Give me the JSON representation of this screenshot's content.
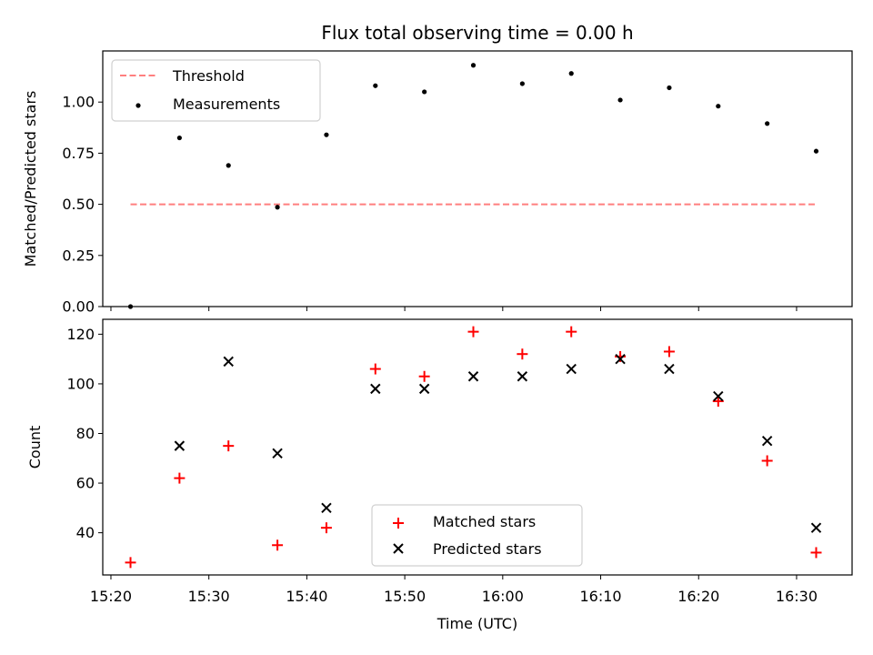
{
  "chart_data": [
    {
      "type": "scatter",
      "title": "Flux total observing time = 0.00 h",
      "xlabel": "",
      "ylabel": "Matched/Predicted stars",
      "ylim": [
        0.0,
        1.25
      ],
      "yticks": [
        "0.00",
        "0.25",
        "0.50",
        "0.75",
        "1.00"
      ],
      "xlim": [
        "15:19:10",
        "16:35:40"
      ],
      "x": [
        "15:22",
        "15:27",
        "15:32",
        "15:37",
        "15:42",
        "15:47",
        "15:52",
        "15:57",
        "16:02",
        "16:07",
        "16:12",
        "16:17",
        "16:22",
        "16:27",
        "16:32"
      ],
      "threshold": {
        "name": "Threshold",
        "value": 0.5,
        "x_start": "15:22",
        "x_end": "16:32",
        "color": "#ff7f7f"
      },
      "series": [
        {
          "name": "Measurements",
          "values": [
            0.0,
            0.825,
            0.69,
            0.486,
            0.84,
            1.08,
            1.05,
            1.18,
            1.09,
            1.14,
            1.01,
            1.07,
            0.98,
            0.895,
            0.76
          ],
          "color": "#000000"
        }
      ],
      "legend_position": "top-left",
      "grid": false
    },
    {
      "type": "scatter",
      "title": "",
      "xlabel": "Time (UTC)",
      "ylabel": "Count",
      "ylim": [
        23,
        126
      ],
      "yticks": [
        40,
        60,
        80,
        100,
        120
      ],
      "xlim": [
        "15:19:10",
        "16:35:40"
      ],
      "xticks": [
        "15:20",
        "15:30",
        "15:40",
        "15:50",
        "16:00",
        "16:10",
        "16:20",
        "16:30"
      ],
      "x": [
        "15:22",
        "15:27",
        "15:32",
        "15:37",
        "15:42",
        "15:47",
        "15:52",
        "15:57",
        "16:02",
        "16:07",
        "16:12",
        "16:17",
        "16:22",
        "16:27",
        "16:32"
      ],
      "series": [
        {
          "name": "Matched stars",
          "marker": "+",
          "color": "#ff0000",
          "values": [
            28,
            62,
            75,
            35,
            42,
            106,
            103,
            121,
            112,
            121,
            111,
            113,
            93,
            69,
            32
          ]
        },
        {
          "name": "Predicted stars",
          "marker": "x",
          "color": "#000000",
          "values": [
            null,
            75,
            109,
            72,
            50,
            98,
            98,
            103,
            103,
            106,
            110,
            106,
            95,
            77,
            42
          ]
        }
      ],
      "legend_position": "lower-center",
      "grid": false
    }
  ]
}
